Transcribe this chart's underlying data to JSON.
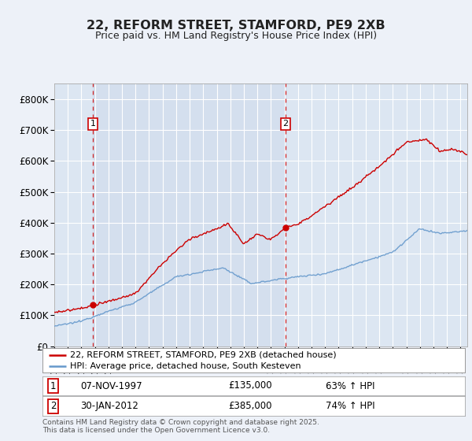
{
  "title": "22, REFORM STREET, STAMFORD, PE9 2XB",
  "subtitle": "Price paid vs. HM Land Registry's House Price Index (HPI)",
  "ylim": [
    0,
    850000
  ],
  "yticks": [
    0,
    100000,
    200000,
    300000,
    400000,
    500000,
    600000,
    700000,
    800000
  ],
  "ytick_labels": [
    "£0",
    "£100K",
    "£200K",
    "£300K",
    "£400K",
    "£500K",
    "£600K",
    "£700K",
    "£800K"
  ],
  "legend_line1": "22, REFORM STREET, STAMFORD, PE9 2XB (detached house)",
  "legend_line2": "HPI: Average price, detached house, South Kesteven",
  "sale1_date": "07-NOV-1997",
  "sale1_price": "£135,000",
  "sale1_hpi": "63% ↑ HPI",
  "sale2_date": "30-JAN-2012",
  "sale2_price": "£385,000",
  "sale2_hpi": "74% ↑ HPI",
  "footer": "Contains HM Land Registry data © Crown copyright and database right 2025.\nThis data is licensed under the Open Government Licence v3.0.",
  "bg_color": "#edf1f8",
  "plot_bg_color": "#dce6f2",
  "shade_bg_color": "#cdd9ec",
  "red_line_color": "#cc0000",
  "blue_line_color": "#6699cc",
  "vline_color": "#cc0000",
  "title_color": "#222222",
  "grid_color": "#ffffff",
  "marker1_x": 1997.85,
  "marker1_y": 135000,
  "marker2_x": 2012.08,
  "marker2_y": 385000,
  "xmin": 1995.0,
  "xmax": 2025.5
}
